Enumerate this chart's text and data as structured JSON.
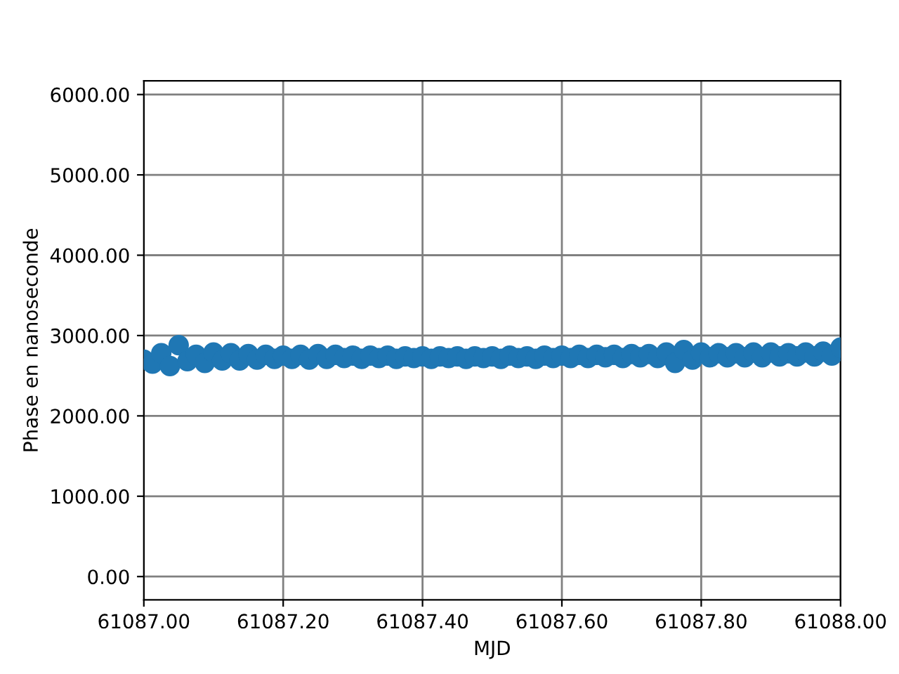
{
  "chart_data": {
    "type": "scatter",
    "xlabel": "MJD",
    "ylabel": "Phase en nanoseconde",
    "xlim": [
      61087.0,
      61088.0
    ],
    "ylim": [
      -290,
      6170
    ],
    "xticks": [
      {
        "value": 61087.0,
        "label": "61087.00"
      },
      {
        "value": 61087.2,
        "label": "61087.20"
      },
      {
        "value": 61087.4,
        "label": "61087.40"
      },
      {
        "value": 61087.6,
        "label": "61087.60"
      },
      {
        "value": 61087.8,
        "label": "61087.80"
      },
      {
        "value": 61088.0,
        "label": "61088.00"
      }
    ],
    "yticks": [
      {
        "value": 0,
        "label": "0.00"
      },
      {
        "value": 1000,
        "label": "1000.00"
      },
      {
        "value": 2000,
        "label": "2000.00"
      },
      {
        "value": 3000,
        "label": "3000.00"
      },
      {
        "value": 4000,
        "label": "4000.00"
      },
      {
        "value": 5000,
        "label": "5000.00"
      },
      {
        "value": 6000,
        "label": "6000.00"
      }
    ],
    "grid": true,
    "marker": "circle",
    "series": [
      {
        "color": "#1f77b4",
        "x": [
          61087.0,
          61087.0125,
          61087.025,
          61087.0375,
          61087.05,
          61087.0625,
          61087.075,
          61087.0875,
          61087.1,
          61087.1125,
          61087.125,
          61087.1375,
          61087.15,
          61087.1625,
          61087.175,
          61087.1875,
          61087.2,
          61087.2125,
          61087.225,
          61087.2375,
          61087.25,
          61087.2625,
          61087.275,
          61087.2875,
          61087.3,
          61087.3125,
          61087.325,
          61087.3375,
          61087.35,
          61087.3625,
          61087.375,
          61087.3875,
          61087.4,
          61087.4125,
          61087.425,
          61087.4375,
          61087.45,
          61087.4625,
          61087.475,
          61087.4875,
          61087.5,
          61087.5125,
          61087.525,
          61087.5375,
          61087.55,
          61087.5625,
          61087.575,
          61087.5875,
          61087.6,
          61087.6125,
          61087.625,
          61087.6375,
          61087.65,
          61087.6625,
          61087.675,
          61087.6875,
          61087.7,
          61087.7125,
          61087.725,
          61087.7375,
          61087.75,
          61087.7625,
          61087.775,
          61087.7875,
          61087.8,
          61087.8125,
          61087.825,
          61087.8375,
          61087.85,
          61087.8625,
          61087.875,
          61087.8875,
          61087.9,
          61087.9125,
          61087.925,
          61087.9375,
          61087.95,
          61087.9625,
          61087.975,
          61087.9875,
          61088.0
        ],
        "values": [
          2700,
          2650,
          2780,
          2620,
          2880,
          2680,
          2760,
          2660,
          2790,
          2690,
          2780,
          2690,
          2770,
          2700,
          2760,
          2710,
          2750,
          2710,
          2760,
          2700,
          2770,
          2710,
          2760,
          2720,
          2750,
          2710,
          2750,
          2720,
          2750,
          2710,
          2740,
          2720,
          2740,
          2710,
          2740,
          2720,
          2740,
          2710,
          2740,
          2720,
          2740,
          2710,
          2750,
          2720,
          2740,
          2710,
          2750,
          2720,
          2750,
          2720,
          2760,
          2720,
          2760,
          2730,
          2760,
          2720,
          2770,
          2730,
          2770,
          2720,
          2790,
          2660,
          2820,
          2700,
          2790,
          2730,
          2780,
          2730,
          2780,
          2730,
          2790,
          2730,
          2790,
          2740,
          2780,
          2740,
          2790,
          2740,
          2800,
          2750,
          2850
        ]
      }
    ]
  }
}
